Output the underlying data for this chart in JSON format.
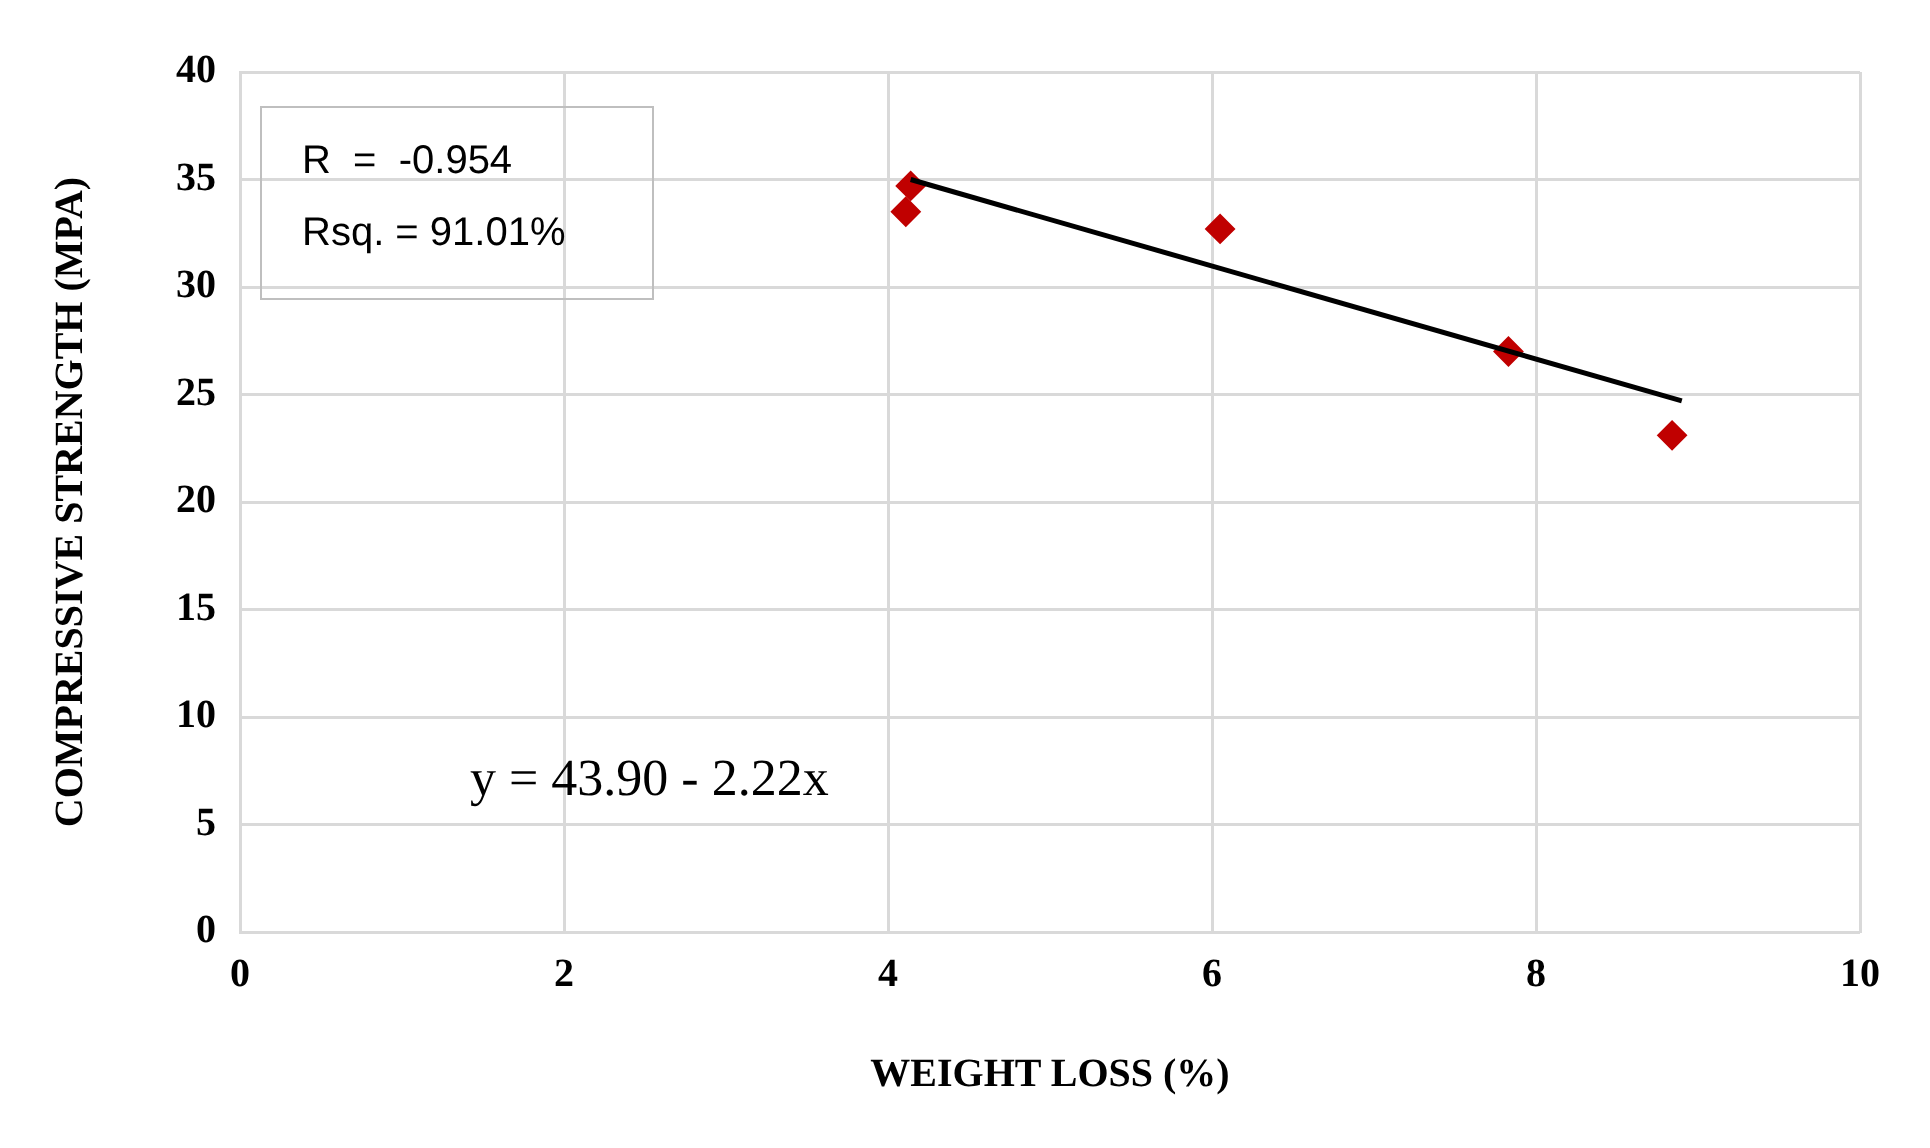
{
  "chart_data": {
    "type": "scatter",
    "xlabel": "WEIGHT LOSS (%)",
    "ylabel": "COMPRESSIVE STRENGTH (MPA)",
    "xlim": [
      0,
      10
    ],
    "xticks": [
      0,
      2,
      4,
      6,
      8,
      10
    ],
    "ylim": [
      0,
      40
    ],
    "yticks": [
      0,
      5,
      10,
      15,
      20,
      25,
      30,
      35,
      40
    ],
    "grid": true,
    "legend": false,
    "marker": "diamond",
    "series": [
      {
        "color": "#c00000",
        "x": [
          4.11,
          4.14,
          6.05,
          7.83,
          8.84
        ],
        "values": [
          33.5,
          34.7,
          32.7,
          27.0,
          23.1
        ]
      },
      {
        "type": "line",
        "color": "#000000",
        "marker": "none",
        "line_style": "solid",
        "x": [
          4.14,
          8.9
        ],
        "values": [
          35.0,
          24.7
        ]
      }
    ],
    "annotations": [
      "R  =  -0.954",
      "Rsq. = 91.01%",
      "y = 43.90 - 2.22x"
    ]
  }
}
